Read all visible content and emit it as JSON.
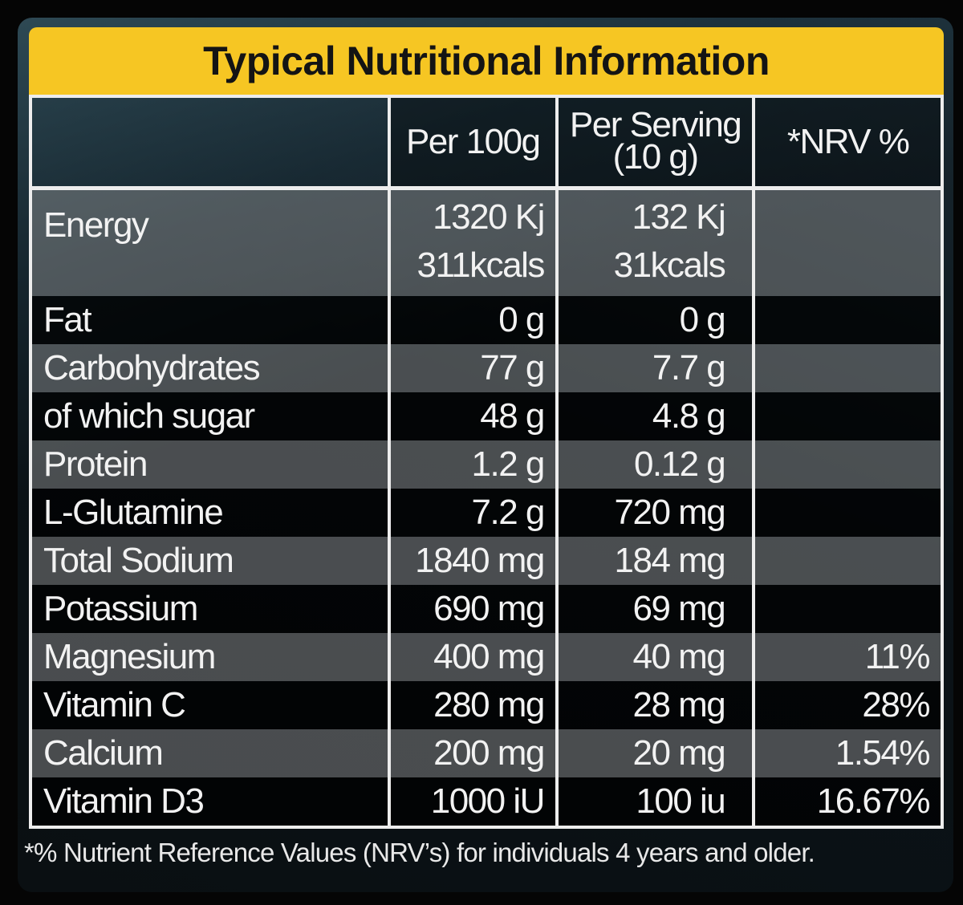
{
  "title": "Typical Nutritional Information",
  "header": {
    "per100": "Per 100g",
    "serving_line1": "Per Serving",
    "serving_line2": "(10 g)",
    "nrv": "*NRV %"
  },
  "rows": [
    {
      "name": "Energy",
      "per100": "1320 Kj",
      "per100_2": "311kcals",
      "serving": "132 Kj",
      "serving_2": "31kcals",
      "nrv": ""
    },
    {
      "name": "Fat",
      "per100": "0 g",
      "serving": "0 g",
      "nrv": ""
    },
    {
      "name": "Carbohydrates",
      "per100": "77 g",
      "serving": "7.7 g",
      "nrv": ""
    },
    {
      "name": "of which sugar",
      "per100": "48 g",
      "serving": "4.8 g",
      "nrv": ""
    },
    {
      "name": "Protein",
      "per100": "1.2 g",
      "serving": "0.12 g",
      "nrv": ""
    },
    {
      "name": "L-Glutamine",
      "per100": "7.2 g",
      "serving": "720 mg",
      "nrv": ""
    },
    {
      "name": "Total Sodium",
      "per100": "1840 mg",
      "serving": "184 mg",
      "nrv": ""
    },
    {
      "name": "Potassium",
      "per100": "690 mg",
      "serving": "69 mg",
      "nrv": ""
    },
    {
      "name": "Magnesium",
      "per100": "400 mg",
      "serving": "40 mg",
      "nrv": "11%"
    },
    {
      "name": "Vitamin C",
      "per100": "280 mg",
      "serving": "28 mg",
      "nrv": "28%"
    },
    {
      "name": "Calcium",
      "per100": "200 mg",
      "serving": "20 mg",
      "nrv": "1.54%"
    },
    {
      "name": "Vitamin D3",
      "per100": "1000 iU",
      "serving": "100 iu",
      "nrv": "16.67%"
    }
  ],
  "footnote": "*% Nutrient Reference Values (NRV’s) for individuals 4 years and older.",
  "colors": {
    "title_bar": "#f6c623",
    "border": "#ededed",
    "row_light": "#8a8a8a",
    "row_dark": "#0a0a0a"
  }
}
